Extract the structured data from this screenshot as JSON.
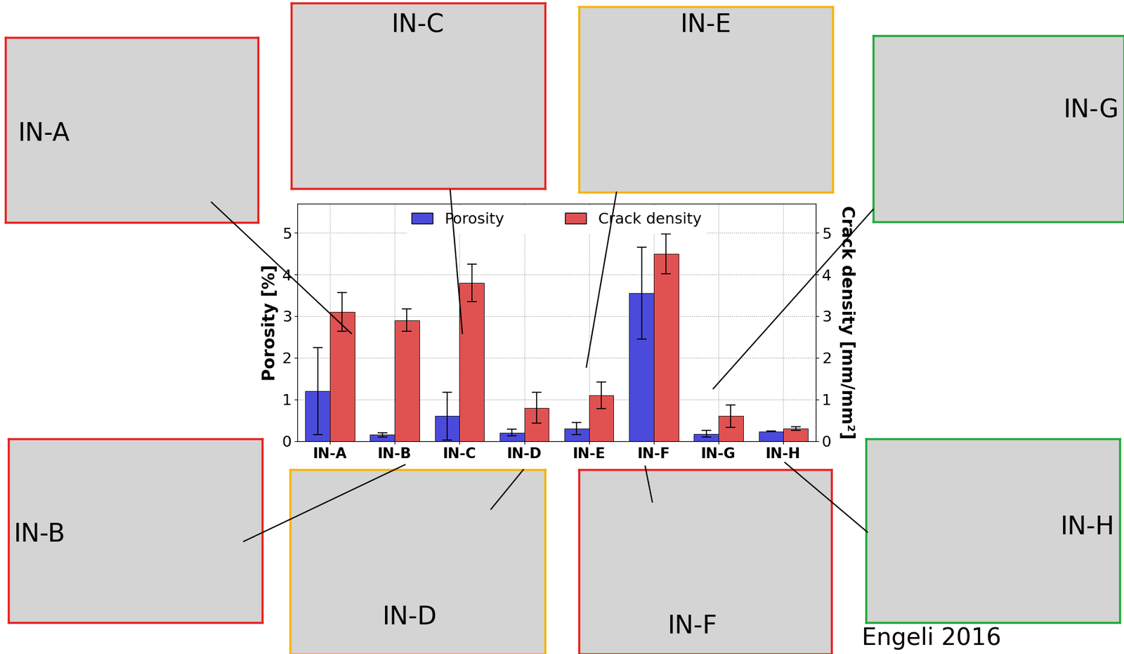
{
  "chart_data": {
    "type": "bar",
    "categories": [
      "IN-A",
      "IN-B",
      "IN-C",
      "IN-D",
      "IN-E",
      "IN-F",
      "IN-G",
      "IN-H"
    ],
    "y_label": "Porosity [%]",
    "y2_label": "Crack density [mm/mm²]",
    "ylim": [
      0,
      5.7
    ],
    "yticks": [
      0,
      1,
      2,
      3,
      4,
      5
    ],
    "y2lim": [
      0,
      5.7
    ],
    "y2ticks": [
      0,
      1,
      2,
      3,
      4,
      5
    ],
    "grid": true,
    "legend": "upper center",
    "series": [
      {
        "name": "Porosity",
        "color": "#4b4bdb",
        "axis": "y",
        "values": [
          1.2,
          0.15,
          0.6,
          0.2,
          0.3,
          3.55,
          0.17,
          0.23
        ],
        "error": [
          1.05,
          0.05,
          0.57,
          0.08,
          0.15,
          1.1,
          0.08,
          0.01
        ]
      },
      {
        "name": "Crack density",
        "color": "#e05252",
        "axis": "y2",
        "values": [
          3.1,
          2.9,
          3.8,
          0.8,
          1.1,
          4.5,
          0.6,
          0.3
        ],
        "error": [
          0.47,
          0.27,
          0.45,
          0.37,
          0.32,
          0.48,
          0.27,
          0.05
        ]
      }
    ]
  },
  "insets": [
    {
      "label": "IN-A",
      "color": "#e8201e"
    },
    {
      "label": "IN-B",
      "color": "#e8201e"
    },
    {
      "label": "IN-C",
      "color": "#e8201e"
    },
    {
      "label": "IN-D",
      "color": "#f5b400"
    },
    {
      "label": "IN-E",
      "color": "#f5b400"
    },
    {
      "label": "IN-F",
      "color": "#e8201e"
    },
    {
      "label": "IN-G",
      "color": "#1faa3a"
    },
    {
      "label": "IN-H",
      "color": "#1faa3a"
    }
  ],
  "source": "Engeli 2016"
}
